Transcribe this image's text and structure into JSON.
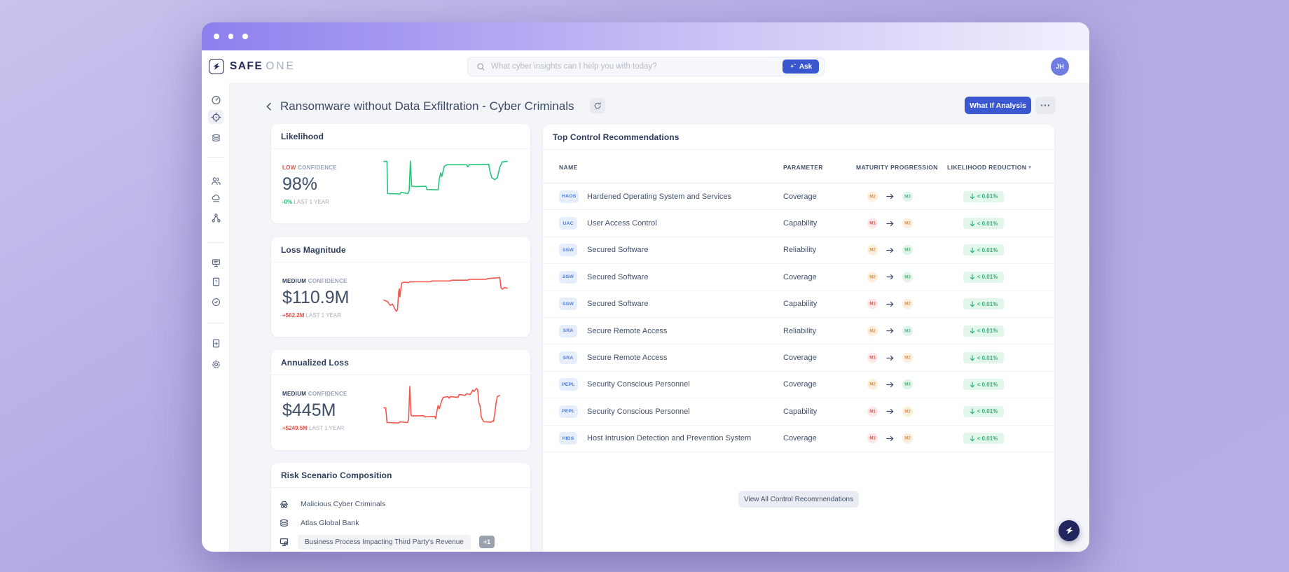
{
  "colors": {
    "accent_blue": "#3a57d0",
    "green": "#27b873",
    "red": "#ef4f46",
    "navy": "#252b57",
    "lavender_bg": "#b5ace5"
  },
  "brand": {
    "word_strong": "SAFE",
    "word_light": "ONE"
  },
  "topbar": {
    "search_placeholder": "What cyber insights can I help you with today?",
    "ask_label": "Ask",
    "avatar_initials": "JH"
  },
  "sidebar": {
    "items": [
      {
        "icon": "gauge-icon",
        "active": false
      },
      {
        "icon": "target-icon",
        "active": true
      },
      {
        "icon": "layers-icon",
        "active": false
      },
      {
        "divider": true
      },
      {
        "icon": "users-icon",
        "active": false
      },
      {
        "icon": "cloud-icon",
        "active": false
      },
      {
        "icon": "share-network-icon",
        "active": false
      },
      {
        "divider": true
      },
      {
        "icon": "billboard-icon",
        "active": false
      },
      {
        "icon": "file-question-icon",
        "active": false
      },
      {
        "icon": "badge-check-icon",
        "active": false
      },
      {
        "divider": true
      },
      {
        "icon": "file-plus-icon",
        "active": false
      },
      {
        "icon": "gear-icon",
        "active": false
      }
    ]
  },
  "page": {
    "title": "Ransomware without Data Exfiltration - Cyber Criminals",
    "what_if_label": "What If Analysis",
    "more_label": "···"
  },
  "stats": [
    {
      "title": "Likelihood",
      "confidence_level": "LOW",
      "confidence_word": "CONFIDENCE",
      "confidence_color": "#ea4f45",
      "value": "98%",
      "delta": "-0%",
      "delta_color": "#27b873",
      "period": "LAST 1 YEAR"
    },
    {
      "title": "Loss Magnitude",
      "confidence_level": "MEDIUM",
      "confidence_word": "CONFIDENCE",
      "confidence_color": "#2e3d5c",
      "value": "$110.9M",
      "delta": "+$62.2M",
      "delta_color": "#ef4f46",
      "period": "LAST 1 YEAR"
    },
    {
      "title": "Annualized Loss",
      "confidence_level": "MEDIUM",
      "confidence_word": "CONFIDENCE",
      "confidence_color": "#2e3d5c",
      "value": "$445M",
      "delta": "+$249.5M",
      "delta_color": "#ef4f46",
      "period": "LAST 1 YEAR"
    }
  ],
  "risk_scenario": {
    "title": "Risk Scenario Composition",
    "items": [
      {
        "icon": "incognito-icon",
        "label": "Malicious Cyber Criminals",
        "boxed": false
      },
      {
        "icon": "layers-icon",
        "label": "Atlas Global Bank",
        "boxed": false
      },
      {
        "icon": "monitor-search-icon",
        "label": "Business Process Impacting Third Party's Revenue",
        "boxed": true,
        "extra_badge": "+1"
      }
    ]
  },
  "table": {
    "title": "Top Control Recommendations",
    "columns": [
      "NAME",
      "PARAMETER",
      "MATURITY PROGRESSION",
      "LIKELIHOOD REDUCTION"
    ],
    "sorted_column": "LIKELIHOOD REDUCTION",
    "rows": [
      {
        "code": "HAOS",
        "name": "Hardened Operating System and Services",
        "parameter": "Coverage",
        "maturity_from": "M2",
        "maturity_to": "M3",
        "reduction": "< 0.01%"
      },
      {
        "code": "UAC",
        "name": "User Access Control",
        "parameter": "Capability",
        "maturity_from": "M1",
        "maturity_to": "M2",
        "reduction": "< 0.01%"
      },
      {
        "code": "SSW",
        "name": "Secured Software",
        "parameter": "Reliability",
        "maturity_from": "M2",
        "maturity_to": "M3",
        "reduction": "< 0.01%"
      },
      {
        "code": "SSW",
        "name": "Secured Software",
        "parameter": "Coverage",
        "maturity_from": "M2",
        "maturity_to": "M3",
        "reduction": "< 0.01%"
      },
      {
        "code": "SSW",
        "name": "Secured Software",
        "parameter": "Capability",
        "maturity_from": "M1",
        "maturity_to": "M2",
        "reduction": "< 0.01%"
      },
      {
        "code": "SRA",
        "name": "Secure Remote Access",
        "parameter": "Reliability",
        "maturity_from": "M2",
        "maturity_to": "M3",
        "reduction": "< 0.01%"
      },
      {
        "code": "SRA",
        "name": "Secure Remote Access",
        "parameter": "Coverage",
        "maturity_from": "M1",
        "maturity_to": "M2",
        "reduction": "< 0.01%"
      },
      {
        "code": "PEPL",
        "name": "Security Conscious Personnel",
        "parameter": "Coverage",
        "maturity_from": "M2",
        "maturity_to": "M3",
        "reduction": "< 0.01%"
      },
      {
        "code": "PEPL",
        "name": "Security Conscious Personnel",
        "parameter": "Capability",
        "maturity_from": "M1",
        "maturity_to": "M2",
        "reduction": "< 0.01%"
      },
      {
        "code": "HIDS",
        "name": "Host Intrusion Detection and Prevention System",
        "parameter": "Coverage",
        "maturity_from": "M1",
        "maturity_to": "M2",
        "reduction": "< 0.01%"
      }
    ],
    "view_all_label": "View All Control Recommendations"
  },
  "maturity_colors": {
    "M1": {
      "bg": "#fce7e7",
      "fg": "#e2574c"
    },
    "M2": {
      "bg": "#fdeedd",
      "fg": "#df9141"
    },
    "M3": {
      "bg": "#e1f4e9",
      "fg": "#48ba82"
    }
  },
  "chart_data": [
    {
      "type": "line",
      "name": "Likelihood trend (last 1 year)",
      "color": "#25c579",
      "ylim": [
        0,
        100
      ],
      "points": [
        [
          0,
          92
        ],
        [
          2.5,
          92
        ],
        [
          3,
          13
        ],
        [
          13,
          12
        ],
        [
          14,
          16
        ],
        [
          19.5,
          13
        ],
        [
          20.5,
          20
        ],
        [
          21.5,
          93
        ],
        [
          22.5,
          31
        ],
        [
          26,
          30
        ],
        [
          34,
          31
        ],
        [
          35,
          23
        ],
        [
          44,
          22
        ],
        [
          45,
          50
        ],
        [
          46,
          64
        ],
        [
          47,
          55
        ],
        [
          49,
          80
        ],
        [
          51,
          84
        ],
        [
          67,
          84
        ],
        [
          68,
          79
        ],
        [
          69,
          84
        ],
        [
          85,
          85
        ],
        [
          86,
          68
        ],
        [
          87.5,
          52
        ],
        [
          90,
          47
        ],
        [
          92,
          52
        ],
        [
          94,
          78
        ],
        [
          96,
          91
        ],
        [
          100,
          92
        ]
      ]
    },
    {
      "type": "line",
      "name": "Loss Magnitude trend (last 1 year)",
      "color": "#f4564c",
      "ylim": [
        0,
        100
      ],
      "points": [
        [
          0,
          30
        ],
        [
          3,
          26
        ],
        [
          5,
          17
        ],
        [
          7,
          20
        ],
        [
          9,
          8
        ],
        [
          10,
          2
        ],
        [
          11,
          6
        ],
        [
          12,
          50
        ],
        [
          12.5,
          58
        ],
        [
          13,
          38
        ],
        [
          13.5,
          52
        ],
        [
          14.5,
          72
        ],
        [
          16,
          74
        ],
        [
          20,
          73
        ],
        [
          21,
          75
        ],
        [
          38,
          75
        ],
        [
          39,
          77
        ],
        [
          54,
          77
        ],
        [
          55,
          79
        ],
        [
          68,
          79
        ],
        [
          69,
          81
        ],
        [
          83,
          81
        ],
        [
          84,
          83
        ],
        [
          93,
          85
        ],
        [
          94,
          86
        ],
        [
          95,
          60
        ],
        [
          96,
          57
        ],
        [
          98,
          61
        ],
        [
          100,
          59
        ]
      ]
    },
    {
      "type": "line",
      "name": "Annualized Loss trend (last 1 year)",
      "color": "#f4564c",
      "ylim": [
        0,
        100
      ],
      "points": [
        [
          0,
          42
        ],
        [
          1.5,
          42
        ],
        [
          2.5,
          6
        ],
        [
          12,
          5
        ],
        [
          13,
          8
        ],
        [
          19,
          6
        ],
        [
          20,
          12
        ],
        [
          21,
          95
        ],
        [
          22,
          24
        ],
        [
          23,
          22
        ],
        [
          32,
          23
        ],
        [
          33,
          20
        ],
        [
          41,
          21
        ],
        [
          42,
          16
        ],
        [
          43,
          34
        ],
        [
          44,
          48
        ],
        [
          45,
          40
        ],
        [
          46.5,
          56
        ],
        [
          48,
          68
        ],
        [
          52,
          70
        ],
        [
          53,
          66
        ],
        [
          54,
          70
        ],
        [
          60,
          68
        ],
        [
          61,
          75
        ],
        [
          66,
          73
        ],
        [
          67,
          77
        ],
        [
          70,
          75
        ],
        [
          72,
          86
        ],
        [
          73,
          82
        ],
        [
          75,
          90
        ],
        [
          76,
          87
        ],
        [
          77,
          55
        ],
        [
          78,
          46
        ],
        [
          79,
          20
        ],
        [
          80,
          13
        ],
        [
          81,
          8
        ],
        [
          87,
          7
        ],
        [
          88,
          10
        ],
        [
          89,
          9
        ],
        [
          90,
          30
        ],
        [
          91,
          55
        ],
        [
          92,
          70
        ],
        [
          94,
          73
        ]
      ]
    }
  ]
}
